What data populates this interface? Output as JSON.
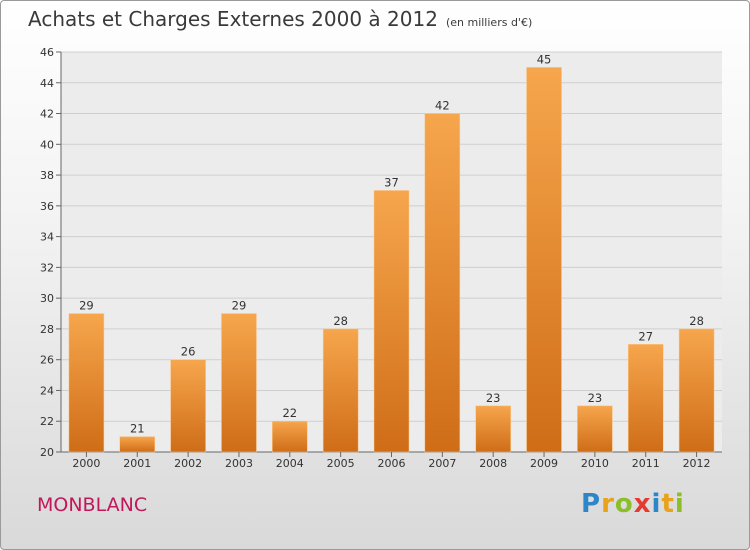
{
  "header": {
    "title": "Achats et Charges Externes 2000 à 2012",
    "unit": "(en milliers d'€)"
  },
  "footer": {
    "city": "MONBLANC",
    "logo": "Proxiti"
  },
  "colors": {
    "bar_light": "#f6a64d",
    "bar_dark": "#cf6d17",
    "city": "#c2185b"
  },
  "chart_data": {
    "type": "bar",
    "title": "Achats et Charges Externes 2000 à 2012",
    "subtitle": "(en milliers d'€)",
    "xlabel": "",
    "ylabel": "",
    "categories": [
      "2000",
      "2001",
      "2002",
      "2003",
      "2004",
      "2005",
      "2006",
      "2007",
      "2008",
      "2009",
      "2010",
      "2011",
      "2012"
    ],
    "values": [
      29,
      21,
      26,
      29,
      22,
      28,
      37,
      42,
      23,
      45,
      23,
      27,
      28
    ],
    "ylim": [
      20,
      46
    ],
    "yticks": [
      20,
      22,
      24,
      26,
      28,
      30,
      32,
      34,
      36,
      38,
      40,
      42,
      44,
      46
    ],
    "grid": true,
    "data_labels": true
  }
}
